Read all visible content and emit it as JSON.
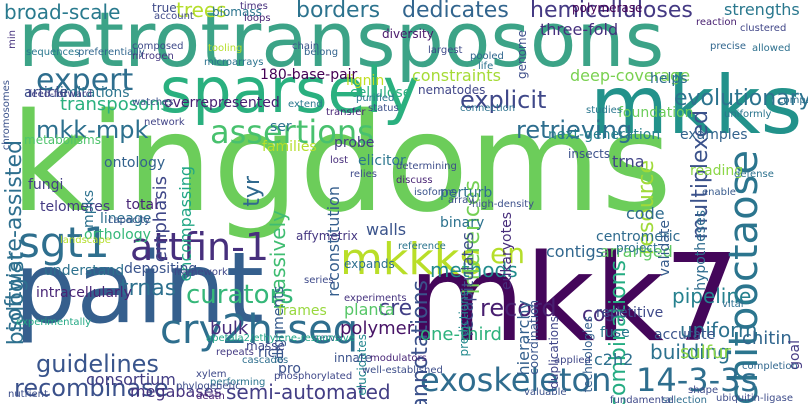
{
  "words": [
    {
      "text": "retrotransposons",
      "color": "#3ca387"
    },
    {
      "text": "kingdoms",
      "color": "#6ccd5a"
    },
    {
      "text": "paint",
      "color": "#355f8d"
    },
    {
      "text": "mkk7",
      "color": "#44065a"
    },
    {
      "text": "sparsely",
      "color": "#2ab07f"
    },
    {
      "text": "mkks",
      "color": "#22928b"
    },
    {
      "text": "mkkks",
      "color": "#b9de28"
    },
    {
      "text": "sgt1",
      "color": "#2e6f8e"
    },
    {
      "text": "attfin-1",
      "color": "#472f7d"
    },
    {
      "text": "cry2h-seq",
      "color": "#2e6e8e"
    },
    {
      "text": "chitooctaose",
      "color": "#2b758e"
    },
    {
      "text": "exoskeleton",
      "color": "#2f6c8e"
    },
    {
      "text": "14-3-3s",
      "color": "#2e6e8e"
    },
    {
      "text": "expert",
      "color": "#2e6e8e"
    },
    {
      "text": "assertions",
      "color": "#48c16e"
    },
    {
      "text": "en",
      "color": "#b5de2b"
    },
    {
      "text": "broad-scale",
      "color": "#297a8e"
    },
    {
      "text": "trees",
      "color": "#b5de2b"
    },
    {
      "text": "borders",
      "color": "#2c738e"
    },
    {
      "text": "dedicates",
      "color": "#32658e"
    },
    {
      "text": "hemicelluloses",
      "color": "#443983"
    },
    {
      "text": "strengths",
      "color": "#2a788e"
    },
    {
      "text": "three-fold",
      "color": "#46307e"
    },
    {
      "text": "explicit",
      "color": "#3f4889"
    },
    {
      "text": "retrieving",
      "color": "#2e6e8e"
    },
    {
      "text": "evolutionary",
      "color": "#2c738e"
    },
    {
      "text": "deep-coverage",
      "color": "#7ad151"
    },
    {
      "text": "constraints",
      "color": "#a5db36"
    },
    {
      "text": "mkk-mpk",
      "color": "#2d708e"
    },
    {
      "text": "software-assisted",
      "color": "#2e6f8e"
    },
    {
      "text": "transposons",
      "color": "#2ab07f"
    },
    {
      "text": "guidelines",
      "color": "#39558c"
    },
    {
      "text": "recombinase",
      "color": "#3b518b"
    },
    {
      "text": "biologist",
      "color": "#2d708e"
    },
    {
      "text": "curators",
      "color": "#35b779"
    },
    {
      "text": "trnas",
      "color": "#2d708e"
    },
    {
      "text": "methods",
      "color": "#228c8d"
    },
    {
      "text": "record",
      "color": "#481f70"
    },
    {
      "text": "cost",
      "color": "#472c7a"
    },
    {
      "text": "semi-automated",
      "color": "#433e85"
    },
    {
      "text": "annotations",
      "color": "#3b518b"
    },
    {
      "text": "inferences",
      "color": "#75d054"
    },
    {
      "text": "combinations",
      "color": "#25ac82"
    },
    {
      "text": "resource",
      "color": "#a0da39"
    },
    {
      "text": "multiplexed",
      "color": "#3b528b"
    },
    {
      "text": "emphasis",
      "color": "#3f4788"
    },
    {
      "text": "tyr",
      "color": "#30698e"
    },
    {
      "text": "massively",
      "color": "#40bd72"
    },
    {
      "text": "reconstitution",
      "color": "#355e8d"
    },
    {
      "text": "recapitulates",
      "color": "#3d4e8a"
    },
    {
      "text": "encompassing",
      "color": "#21a685"
    },
    {
      "text": "consortium",
      "color": "#433d84"
    },
    {
      "text": "cre",
      "color": "#424086"
    },
    {
      "text": "one-third",
      "color": "#2db27d"
    },
    {
      "text": "pipeline",
      "color": "#26818e"
    },
    {
      "text": "uniform",
      "color": "#2c718e"
    },
    {
      "text": "building",
      "color": "#2c728e"
    },
    {
      "text": "sulfur",
      "color": "#8bd646"
    },
    {
      "text": "chitin",
      "color": "#31668e"
    },
    {
      "text": "polymer",
      "color": "#481467"
    },
    {
      "text": "planta",
      "color": "#56c667"
    },
    {
      "text": "bulk",
      "color": "#472d7b"
    },
    {
      "text": "megabases",
      "color": "#46337f"
    },
    {
      "text": "c2h2",
      "color": "#2e6f8e"
    },
    {
      "text": "arranged",
      "color": "#5ec962"
    },
    {
      "text": "contigs",
      "color": "#31678e"
    },
    {
      "text": "centromeric",
      "color": "#2f6b8e"
    },
    {
      "text": "repetitive",
      "color": "#3e4989"
    },
    {
      "text": "code",
      "color": "#2f6b8e"
    },
    {
      "text": "trna",
      "color": "#414487"
    },
    {
      "text": "walls",
      "color": "#3a538b"
    },
    {
      "text": "curators-foundation",
      "color": "#6ccd5a"
    },
    {
      "text": "foundation",
      "color": "#6ccd5a"
    },
    {
      "text": "next-generation",
      "color": "#26818e"
    },
    {
      "text": "cellulose",
      "color": "#29af7f"
    },
    {
      "text": "180-base-pair",
      "color": "#440154"
    },
    {
      "text": "overrepresented",
      "color": "#482173"
    },
    {
      "text": "lignin",
      "color": "#c2df23"
    },
    {
      "text": "nematodes",
      "color": "#404688"
    },
    {
      "text": "limitations",
      "color": "#2b748e"
    },
    {
      "text": "article",
      "color": "#3d4e8a"
    },
    {
      "text": "ontology",
      "color": "#33628d"
    },
    {
      "text": "fungi",
      "color": "#433e85"
    },
    {
      "text": "telomeres",
      "color": "#443a83"
    },
    {
      "text": "total",
      "color": "#482677"
    },
    {
      "text": "lineage",
      "color": "#2d718e"
    },
    {
      "text": "mpks",
      "color": "#2c718e"
    },
    {
      "text": "orthology",
      "color": "#35b779"
    },
    {
      "text": "affymetrix",
      "color": "#453781"
    },
    {
      "text": "depositing",
      "color": "#3a548c"
    },
    {
      "text": "understand",
      "color": "#2d718e"
    },
    {
      "text": "intracellularly",
      "color": "#482576"
    },
    {
      "text": "rich",
      "color": "#3b528b"
    },
    {
      "text": "pro",
      "color": "#3b518b"
    },
    {
      "text": "alignments",
      "color": "#375b8d"
    },
    {
      "text": "masse",
      "color": "#3f4889"
    },
    {
      "text": "frames",
      "color": "#98d83e"
    },
    {
      "text": "accurate",
      "color": "#3a548c"
    },
    {
      "text": "fuse",
      "color": "#2a778e"
    },
    {
      "text": "hierarchy",
      "color": "#34608d"
    },
    {
      "text": "hypotheses",
      "color": "#2f6c8e"
    },
    {
      "text": "validate",
      "color": "#365c8d"
    },
    {
      "text": "examples",
      "color": "#33638d"
    },
    {
      "text": "reading",
      "color": "#8bd646"
    },
    {
      "text": "helps",
      "color": "#2e6e8e"
    },
    {
      "text": "eukaryotes",
      "color": "#472d7b"
    },
    {
      "text": "binary",
      "color": "#2c728e"
    },
    {
      "text": "perturb",
      "color": "#2e6f8e"
    },
    {
      "text": "elicitor",
      "color": "#2a768e"
    },
    {
      "text": "families",
      "color": "#b5de2b"
    },
    {
      "text": "probe",
      "color": "#443b84"
    },
    {
      "text": "ser",
      "color": "#2c728e"
    },
    {
      "text": "insects",
      "color": "#3b518b"
    },
    {
      "text": "coordination",
      "color": "#39558c"
    },
    {
      "text": "duplications",
      "color": "#404588"
    },
    {
      "text": "technologies",
      "color": "#355f8d"
    },
    {
      "text": "predictions",
      "color": "#238a8d"
    },
    {
      "text": "goal",
      "color": "#443983"
    },
    {
      "text": "elucidates",
      "color": "#24878e"
    },
    {
      "text": "innate",
      "color": "#3b528b"
    },
    {
      "text": "expands",
      "color": "#2e6f8e"
    },
    {
      "text": "project",
      "color": "#2c718e"
    },
    {
      "text": "genome",
      "color": "#3d4d8a"
    },
    {
      "text": "true",
      "color": "#3e4a89"
    },
    {
      "text": "biomass",
      "color": "#2b748e"
    },
    {
      "text": "diversity",
      "color": "#48186a"
    },
    {
      "text": "polymerase",
      "color": "#440154"
    },
    {
      "text": "reaction",
      "color": "#482071"
    },
    {
      "text": "clustered",
      "color": "#404688"
    },
    {
      "text": "allowed",
      "color": "#2d708e"
    },
    {
      "text": "precise",
      "color": "#31668e"
    },
    {
      "text": "compare",
      "color": "#2d708e"
    },
    {
      "text": "ubiquitin-ligase",
      "color": "#3e4c8a"
    },
    {
      "text": "selection",
      "color": "#2e6e8e"
    },
    {
      "text": "fundamental",
      "color": "#3e4989"
    },
    {
      "text": "valuable",
      "color": "#3b528b"
    },
    {
      "text": "nutrient",
      "color": "#3d4e8a"
    },
    {
      "text": "min",
      "color": "#46327e"
    },
    {
      "text": "feed-forward",
      "color": "#433e85"
    },
    {
      "text": "metabolisms",
      "color": "#4ec36b"
    },
    {
      "text": "capacity",
      "color": "#3a548c"
    },
    {
      "text": "framework",
      "color": "#3f4788"
    },
    {
      "text": "sequences",
      "color": "#2a788e"
    },
    {
      "text": "preferentially",
      "color": "#31678e"
    },
    {
      "text": "composed",
      "color": "#3e4a89"
    },
    {
      "text": "nitrogen",
      "color": "#453781"
    },
    {
      "text": "tooling",
      "color": "#b5de2b"
    },
    {
      "text": "microarrays",
      "color": "#2c738e"
    },
    {
      "text": "times",
      "color": "#472f7d"
    },
    {
      "text": "loops",
      "color": "#482475"
    },
    {
      "text": "chain",
      "color": "#3a538b"
    },
    {
      "text": "belong",
      "color": "#33638d"
    },
    {
      "text": "largest",
      "color": "#3e4a89"
    },
    {
      "text": "connection",
      "color": "#2c728e"
    },
    {
      "text": "purified",
      "color": "#2b748e"
    },
    {
      "text": "status",
      "color": "#3c4f8a"
    },
    {
      "text": "transfer",
      "color": "#482576"
    },
    {
      "text": "lost",
      "color": "#472d7b"
    },
    {
      "text": "relies",
      "color": "#3e4a89"
    },
    {
      "text": "determining",
      "color": "#3d4d8a"
    },
    {
      "text": "discuss",
      "color": "#482374"
    },
    {
      "text": "experimentally",
      "color": "#22a884"
    },
    {
      "text": "repeats",
      "color": "#443a83"
    },
    {
      "text": "cascades",
      "color": "#2e6f8e"
    },
    {
      "text": "serve",
      "color": "#3a548c"
    },
    {
      "text": "modulators",
      "color": "#482677"
    },
    {
      "text": "well-established",
      "color": "#3d4e8a"
    },
    {
      "text": "applied",
      "color": "#3f4788"
    },
    {
      "text": "completion",
      "color": "#31678e"
    },
    {
      "text": "shape",
      "color": "#3e4c8a"
    },
    {
      "text": "performing",
      "color": "#2b758e"
    },
    {
      "text": "phylogenetic",
      "color": "#3d4d8a"
    },
    {
      "text": "phosphorylated",
      "color": "#3f4889"
    },
    {
      "text": "xylem",
      "color": "#3e4989"
    },
    {
      "text": "death",
      "color": "#482071"
    },
    {
      "text": "apetala2/ethylene-responsive",
      "color": "#20a486"
    },
    {
      "text": "network",
      "color": "#414487"
    },
    {
      "text": "extend",
      "color": "#2a788e"
    },
    {
      "text": "array",
      "color": "#3c4f8a"
    },
    {
      "text": "high-density",
      "color": "#3c508b"
    },
    {
      "text": "reference",
      "color": "#2b748e"
    },
    {
      "text": "vital",
      "color": "#2e6e8e"
    },
    {
      "text": "enable",
      "color": "#375a8c"
    },
    {
      "text": "defense",
      "color": "#2c718e"
    },
    {
      "text": "experiments",
      "color": "#46337f"
    },
    {
      "text": "series",
      "color": "#3e4a89"
    },
    {
      "text": "chromosomes",
      "color": "#3b528b"
    },
    {
      "text": "landscape",
      "color": "#b5de2b"
    },
    {
      "text": "life",
      "color": "#2c728e"
    },
    {
      "text": "pooled",
      "color": "#31668e"
    },
    {
      "text": "account",
      "color": "#3e4989"
    },
    {
      "text": "studies",
      "color": "#2a778e"
    },
    {
      "text": "uniformly",
      "color": "#2b758e"
    },
    {
      "text": "isoforms",
      "color": "#3a548c"
    },
    {
      "text": "watches",
      "color": "#3b528b"
    }
  ]
}
